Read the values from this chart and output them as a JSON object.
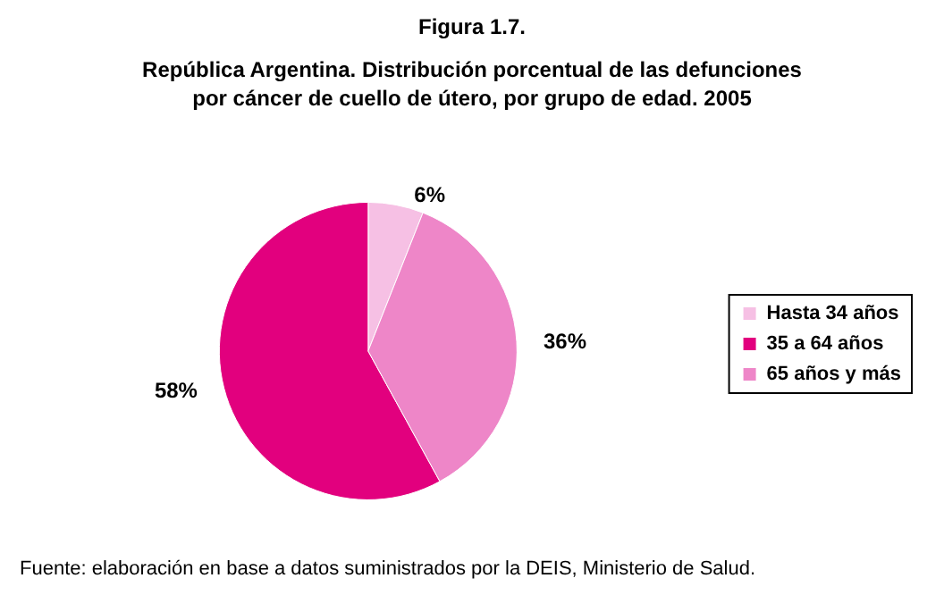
{
  "chart_data": {
    "type": "pie",
    "title": "Figura 1.7.",
    "subtitle": "República Argentina. Distribución porcentual de las defunciones\npor cáncer de cuello de útero, por grupo de edad. 2005",
    "categories": [
      "Hasta 34 años",
      "35 a 64 años",
      "65 años y más"
    ],
    "values": [
      6,
      58,
      36
    ],
    "colors": [
      "#f6c0e4",
      "#e2007e",
      "#ee86c8"
    ],
    "value_labels": [
      "6%",
      "58%",
      "36%"
    ],
    "legend": "right",
    "annotations": [
      "Fuente: elaboración en base a datos suministrados por la DEIS, Ministerio de Salud."
    ]
  }
}
